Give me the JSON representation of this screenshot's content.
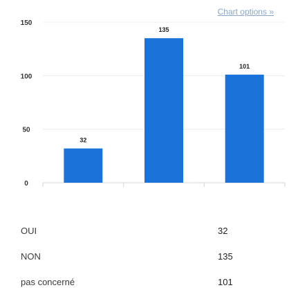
{
  "chart_options_label": "Chart options »",
  "chart_data": {
    "type": "bar",
    "categories": [
      "OUI",
      "NON",
      "pas concerné"
    ],
    "values": [
      32,
      135,
      101
    ],
    "ylim": [
      0,
      150
    ],
    "yticks": [
      0,
      50,
      100,
      150
    ],
    "grid": true,
    "bar_color": "#1a73d8",
    "title": "",
    "xlabel": "",
    "ylabel": ""
  },
  "summary": [
    {
      "category": "OUI",
      "value": "32"
    },
    {
      "category": "NON",
      "value": "135"
    },
    {
      "category": "pas concerné",
      "value": "101"
    }
  ]
}
